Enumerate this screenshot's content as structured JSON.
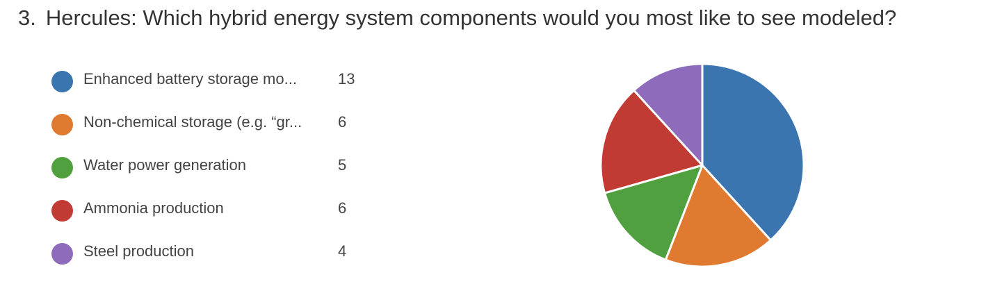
{
  "question": {
    "number": "3.",
    "text": "Hercules: Which hybrid energy system components would you most like to see modeled?"
  },
  "chart_data": {
    "type": "pie",
    "title": "",
    "categories": [
      "Enhanced battery storage mo...",
      "Non-chemical storage (e.g. “gr...",
      "Water power generation",
      "Ammonia production",
      "Steel production"
    ],
    "values": [
      13,
      6,
      5,
      6,
      4
    ],
    "colors": [
      "#3a75b0",
      "#e07a30",
      "#51a03f",
      "#c23a34",
      "#8e6bbb"
    ],
    "legend_position": "left",
    "slice_stroke": "#ffffff"
  }
}
